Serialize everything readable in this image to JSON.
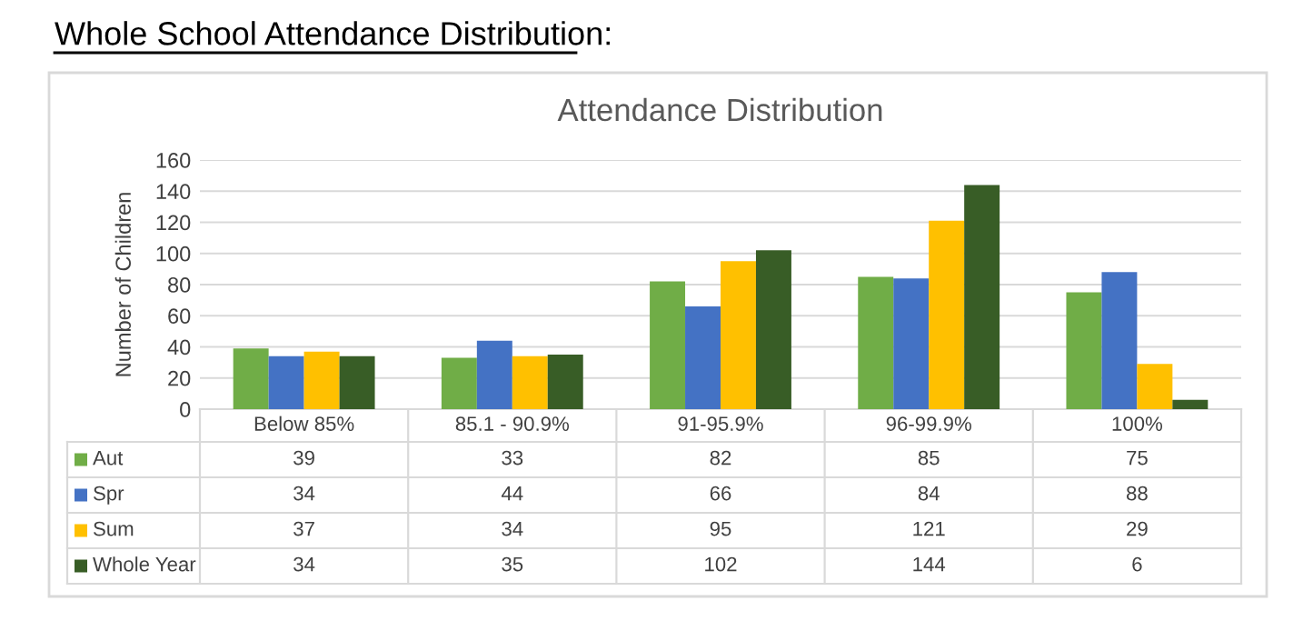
{
  "chart_data": {
    "type": "bar",
    "title": "Whole School Attendance Distribution:",
    "subtitle": "Attendance Distribution",
    "ylabel": "Number of Children",
    "categories": [
      "Below 85%",
      "85.1 - 90.9%",
      "91-95.9%",
      "96-99.9%",
      "100%"
    ],
    "series": [
      {
        "name": "Aut",
        "color": "#70ad47",
        "values": [
          39,
          33,
          82,
          85,
          75
        ]
      },
      {
        "name": "Spr",
        "color": "#4472c4",
        "values": [
          34,
          44,
          66,
          84,
          88
        ]
      },
      {
        "name": "Sum",
        "color": "#ffc000",
        "values": [
          37,
          34,
          95,
          121,
          29
        ]
      },
      {
        "name": "Whole Year",
        "color": "#385d26",
        "values": [
          34,
          35,
          102,
          144,
          6
        ]
      }
    ],
    "ylim": [
      0,
      160
    ],
    "yticks": [
      0,
      20,
      40,
      60,
      80,
      100,
      120,
      140,
      160
    ],
    "grid": "y",
    "legend": "bottom left",
    "data_labels": true
  }
}
